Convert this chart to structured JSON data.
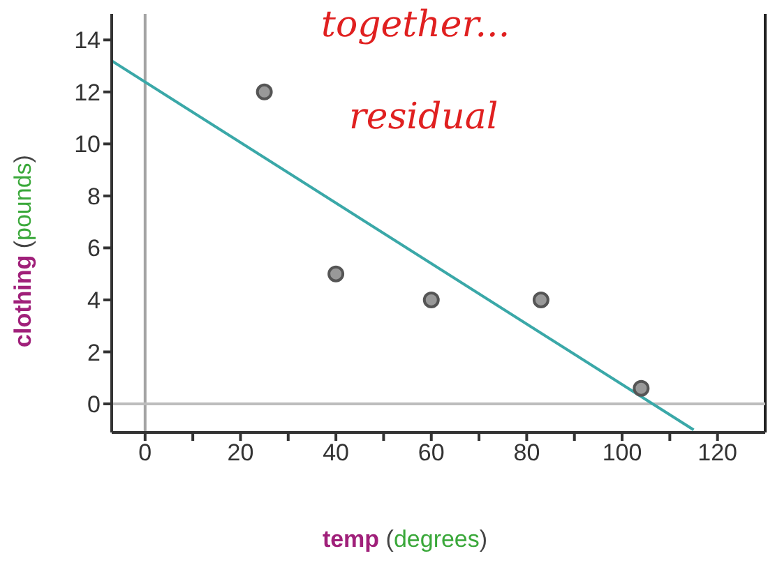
{
  "chart_data": {
    "type": "scatter",
    "xlabel": "temp (degrees)",
    "ylabel": "clothing (pounds)",
    "annotations": [
      "together...",
      "residual"
    ],
    "xlim": [
      -7,
      130
    ],
    "ylim": [
      -1.1,
      15
    ],
    "xticks": [
      0,
      {
        "value": 10,
        "label": null
      },
      20,
      {
        "value": 30,
        "label": null
      },
      40,
      {
        "value": 50,
        "label": null
      },
      60,
      {
        "value": 70,
        "label": null
      },
      80,
      {
        "value": 90,
        "label": null
      },
      100,
      {
        "value": 110,
        "label": null
      },
      120
    ],
    "yticks": [
      0,
      2,
      4,
      6,
      8,
      10,
      12,
      14
    ],
    "grid": false,
    "ref_lines": [
      {
        "axis": "x",
        "value": 0,
        "color": "#a4a4a4"
      },
      {
        "axis": "y",
        "value": 0,
        "color": "#bdbdbd"
      }
    ],
    "series": [
      {
        "color": "#555555",
        "marker": "circle",
        "x": [
          25,
          40,
          60,
          83,
          104
        ],
        "values": [
          12,
          5,
          4,
          4,
          0.6
        ]
      },
      {
        "type": "line",
        "color": "#3aa8a8",
        "x": [
          -7,
          115
        ],
        "values": [
          13.2,
          -1
        ]
      }
    ]
  }
}
